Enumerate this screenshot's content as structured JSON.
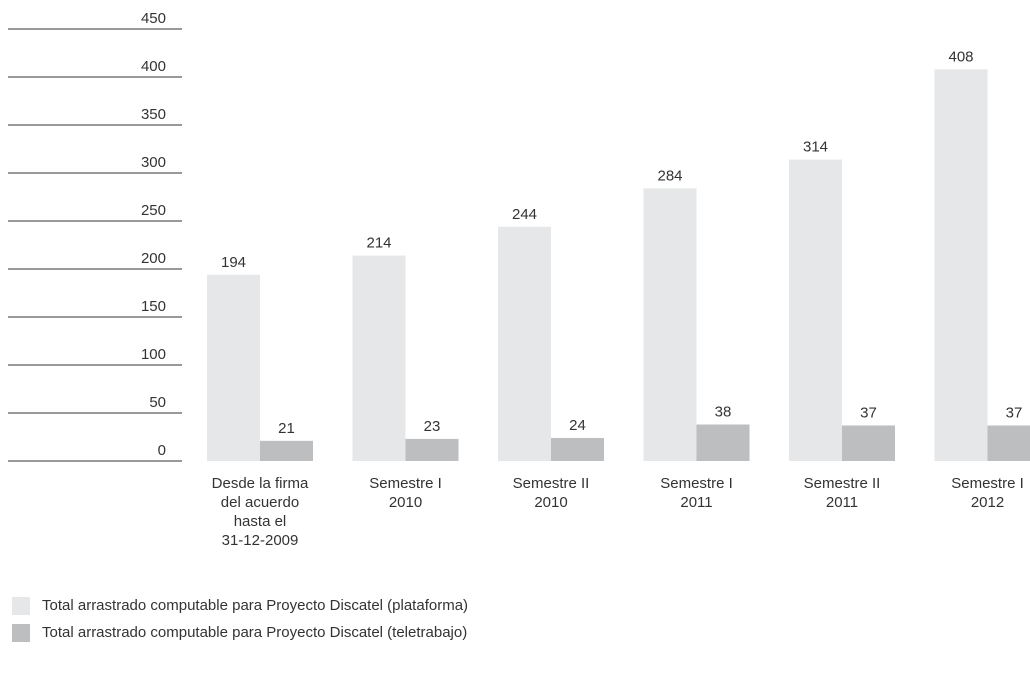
{
  "chart_data": {
    "type": "bar",
    "categories": [
      [
        "Desde la firma",
        "del acuerdo",
        "hasta el",
        "31-12-2009"
      ],
      [
        "Semestre I",
        "2010"
      ],
      [
        "Semestre II",
        "2010"
      ],
      [
        "Semestre I",
        "2011"
      ],
      [
        "Semestre II",
        "2011"
      ],
      [
        "Semestre I",
        "2012"
      ]
    ],
    "series": [
      {
        "name": "Total arrastrado computable para Proyecto Discatel (plataforma)",
        "color": "#e6e7e8",
        "values": [
          194,
          214,
          244,
          284,
          314,
          408
        ]
      },
      {
        "name": "Total arrastrado computable para Proyecto Discatel (teletrabajo)",
        "color": "#bcbec0",
        "values": [
          21,
          23,
          24,
          38,
          37,
          37
        ]
      }
    ],
    "yticks": [
      0,
      50,
      100,
      150,
      200,
      250,
      300,
      350,
      400,
      450
    ],
    "ylim": [
      0,
      450
    ],
    "grid": "horizontal tick lines at left axis only",
    "legend_position": "bottom-left"
  }
}
